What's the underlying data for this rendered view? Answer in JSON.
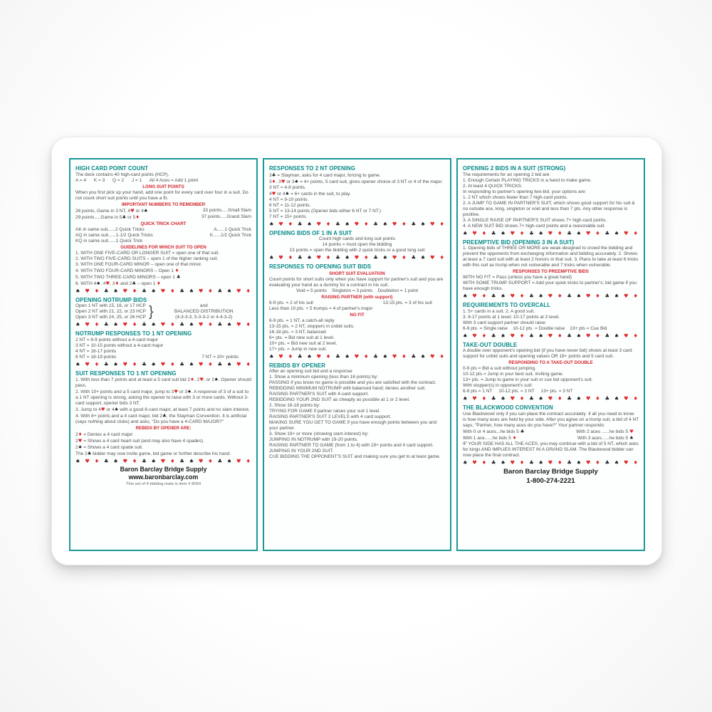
{
  "card_title": "Bridge Bidding Reference Card",
  "colors": {
    "panel_border_teal": "#1a9896",
    "heading_teal": "#058a88",
    "subheading_red": "#d2232a",
    "body_text": "#4f4f4f",
    "suit_red": "#e02b2b",
    "suit_black": "#262626",
    "card_background": "#ffffff"
  },
  "suit_row": "{S} {H} {D} {C} {S} {H} {D} {C} {S} {H} {D} {C} {S} {H} {D} {C} {S} {H} {D} {C}",
  "columns": [
    {
      "name": "left-panel",
      "blocks": [
        {
          "t": "h",
          "text": "HIGH CARD POINT COUNT"
        },
        {
          "t": "p",
          "text": "The deck contains 40 high-card points (HCP)."
        },
        {
          "t": "p",
          "text": "A = 4      K = 3      Q = 2      J = 1      All 4 Aces = Add 1 point"
        },
        {
          "t": "sh",
          "text": "LONG SUIT POINTS"
        },
        {
          "t": "p",
          "text": "When you first pick up your hand, add one point for every card over four in a suit. Do not count short suit points until you have a fit."
        },
        {
          "t": "sh",
          "text": "IMPORTANT NUMBERS TO REMEMBER"
        },
        {
          "t": "cols2",
          "left": "26 points, Game in 3 NT, 4{H} or 4{S}",
          "right": "33 points.....Small Slam"
        },
        {
          "t": "cols2",
          "left": "29 points.....Game in 5{C} or 5{D}",
          "right": "37 points.....Grand Slam"
        },
        {
          "t": "sh",
          "text": "QUICK TRICK CHART"
        },
        {
          "t": "cols2",
          "left": "AK in same suit......2 Quick Tricks",
          "right": "A......1 Quick Trick"
        },
        {
          "t": "cols2",
          "left": "AQ in same suit......1-1/2 Quick Tricks",
          "right": "K......1/2 Quick Trick"
        },
        {
          "t": "p",
          "text": "KQ in same suit......1 Quick Trick"
        },
        {
          "t": "sh",
          "text": "GUIDELINES FOR WHICH SUIT TO OPEN"
        },
        {
          "t": "p",
          "text": "1. WITH ONE FIVE-CARD OR LONGER SUIT = open one of that suit."
        },
        {
          "t": "p",
          "text": "2. WITH TWO FIVE-CARD SUITS – open 1 of the higher ranking suit."
        },
        {
          "t": "p",
          "text": "3. WITH ONE FOUR-CARD MINOR – open one of that minor."
        },
        {
          "t": "p",
          "text": "4. WITH TWO FOUR-CARD MINORS – Open 1 {D}"
        },
        {
          "t": "p",
          "text": "5. WITH TWO THREE-CARD MINORS – open 1 {C}"
        },
        {
          "t": "p",
          "text": "6. WITH 4{S}, 4{H}, 3{D} and 2{C} – open 1 {D}"
        },
        {
          "t": "suits"
        },
        {
          "t": "h",
          "text": "OPENING NOTRUMP BIDS"
        },
        {
          "t": "split",
          "left": [
            "Open 1 NT with 15, 16, or 17 HCP",
            "Open 2 NT with 21, 22, or 23 HCP",
            "Open 3 NT with 24, 25, or 26 HCP"
          ],
          "brace": "}",
          "right": [
            "and",
            "BALANCED DISTRIBUTION",
            "(4-3-3-3, 5-3-3-2 or 4-4-3-2)"
          ]
        },
        {
          "t": "suits"
        },
        {
          "t": "h",
          "text": "NOTRUMP RESPONSES TO 1 NT OPENING"
        },
        {
          "t": "p",
          "text": "2 NT = 8-9 points without a 4-card major"
        },
        {
          "t": "p",
          "text": "3 NT = 10-15 points without a 4-card major"
        },
        {
          "t": "p",
          "text": "4 NT = 16-17 points"
        },
        {
          "t": "cols2",
          "left": "6 NT = 18-19 points",
          "right": "7 NT = 20+ points          "
        },
        {
          "t": "suits"
        },
        {
          "t": "h",
          "text": "SUIT RESPONSES TO 1 NT OPENING"
        },
        {
          "t": "p",
          "text": "1. With less than 7 points and at least a 5 card suit bid 2{D}, 2{H}, or 2{S}. Opener should pass."
        },
        {
          "t": "p",
          "text": "2. With 10+ points and a 5 card major, jump to 3{H} or 3{S}. A response of 3 of a suit to a 1 NT opening is strong, asking the opener to raise with 3 or more cards. Without 3-card support, opener bids 3 NT."
        },
        {
          "t": "p",
          "text": "3. Jump to 4{H} or 4{S} with a good 6-card major, at least 7 points and no slam interest."
        },
        {
          "t": "p",
          "text": "4. With 8+ points and a 4 card major, bid 2{C}, the Stayman Convention. It is artificial (says nothing about clubs) and asks, \"Do you have a 4-CARD MAJOR?\""
        },
        {
          "t": "sh",
          "text": "REBIDS BY OPENER ARE:"
        },
        {
          "t": "p",
          "text": "2{D} = Denies a 4 card major"
        },
        {
          "t": "p",
          "text": "2{H} = Shows a 4 card heart suit (and may also have 4 spades)."
        },
        {
          "t": "p",
          "text": "2{S} = Shows a 4 card spade suit."
        },
        {
          "t": "p",
          "text": "The 2{C} bidder may now invite game, bid game or further describe his hand."
        },
        {
          "t": "suits"
        },
        {
          "t": "b",
          "text": "Baron Barclay Bridge Supply"
        },
        {
          "t": "b",
          "text": "www.baronbarclay.com"
        },
        {
          "t": "ps",
          "text": "This set of 4 bidding mats is item # 8054"
        }
      ]
    },
    {
      "name": "middle-panel",
      "blocks": [
        {
          "t": "h",
          "text": "RESPONSES TO 2 NT OPENING"
        },
        {
          "t": "p",
          "text": "3{C} = Stayman, asks for 4 card major, forcing to game."
        },
        {
          "t": "p",
          "text": "3{D}, 3{H} or 3{S} = 4+ points, 5 card suit, gives opener choice of 3 NT or 4 of the major."
        },
        {
          "t": "p",
          "text": "3 NT = 4-8 points."
        },
        {
          "t": "p",
          "text": "4{H} or 4{S} = 6+ cards in the suit, to play."
        },
        {
          "t": "p",
          "text": "4 NT = 9-10 points."
        },
        {
          "t": "p",
          "text": "6 NT = 11-12 points."
        },
        {
          "t": "p",
          "text": "5 NT = 13-14 points (Opener bids either 6 NT or 7 NT.)"
        },
        {
          "t": "p",
          "text": "7 NT = 15+ points."
        },
        {
          "t": "suits"
        },
        {
          "t": "h",
          "text": "OPENING BIDS OF 1 IN A SUIT"
        },
        {
          "t": "pc",
          "text": "Count high cards and long suit points"
        },
        {
          "t": "pc",
          "text": "14 points = must open the bidding"
        },
        {
          "t": "pc",
          "text": "13 points = open the bidding with 2 quick tricks or a good long suit"
        },
        {
          "t": "suits"
        },
        {
          "t": "h",
          "text": "RESPONSES TO OPENING SUIT BIDS"
        },
        {
          "t": "sh",
          "text": "SHORT SUIT EVALUATION"
        },
        {
          "t": "p",
          "text": "Count points for short suits only when you have support for partner's suit and you are evaluating your hand as a dummy for a contract in his suit."
        },
        {
          "t": "pc",
          "text": "Void = 5 points    Singleton = 3 points    Doubleton = 1 point"
        },
        {
          "t": "sh",
          "text": "RAISING PARTNER (with support)"
        },
        {
          "t": "cols2",
          "left": "6-9 pts. = 2 of his suit",
          "right": "13-15 pts. = 3 of his suit          "
        },
        {
          "t": "p",
          "text": "Less than 10 pts. + 5 trumps = 4 of partner's major"
        },
        {
          "t": "sh",
          "text": "NO FIT"
        },
        {
          "t": "p",
          "text": "6-9 pts. = 1 NT, a catch-all reply"
        },
        {
          "t": "p",
          "text": "13-15 pts. = 2 NT, stoppers in unbid suits."
        },
        {
          "t": "p",
          "text": "16-18 pts. = 3 NT, balanced"
        },
        {
          "t": "p",
          "text": "6+ pts. = Bid new suit at 1 level."
        },
        {
          "t": "p",
          "text": "10+ pts. = Bid new suit at 2 level."
        },
        {
          "t": "p",
          "text": "17+ pts. = Jump in new suit."
        },
        {
          "t": "suits"
        },
        {
          "t": "h",
          "text": "REBIDS BY OPENER"
        },
        {
          "t": "p",
          "text": "After an opening suit bid and a response"
        },
        {
          "t": "p",
          "text": "1. Show a minimum opening (less than 16 points) by:"
        },
        {
          "t": "p",
          "text": "PASSING if you know no game is possible and you are satisfied with the contract."
        },
        {
          "t": "p",
          "text": "REBIDDING MINIMUM NOTRUMP with balanced hand; denies another suit."
        },
        {
          "t": "p",
          "text": "RAISING PARTNER'S SUIT with 4-card support."
        },
        {
          "t": "p",
          "text": "REBIDDING YOUR 2ND SUIT as cheaply as possible at 1 or 2 level."
        },
        {
          "t": "p",
          "text": "2. Show 16-18 points by:"
        },
        {
          "t": "p",
          "text": "TRYING FOR GAME if partner raises your suit 1 level."
        },
        {
          "t": "p",
          "text": "RAISING PARTNER'S SUIT 2 LEVELS with 4 card support."
        },
        {
          "t": "p",
          "text": "MAKING SURE YOU GET TO GAME if you have enough points between you and your partner."
        },
        {
          "t": "p",
          "text": "3. Show 19+ or more (showing slam interest) by:"
        },
        {
          "t": "p",
          "text": "JUMPING IN NOTRUMP with 19-20 points."
        },
        {
          "t": "p",
          "text": "RAISING PARTNER TO GAME (from 1 to 4) with 19+ points and 4 card support."
        },
        {
          "t": "p",
          "text": "JUMPING IN YOUR 2ND SUIT."
        },
        {
          "t": "p",
          "text": "CUE BIDDING THE OPPONENT'S SUIT and making sure you get to at least game."
        }
      ]
    },
    {
      "name": "right-panel",
      "blocks": [
        {
          "t": "h",
          "text": "OPENING 2 BIDS IN A SUIT (STRONG)"
        },
        {
          "t": "p",
          "text": "The requirements for an opening 2 bid are:"
        },
        {
          "t": "p",
          "text": "1. Enough Certain PLAYING TRICKS in a hand to make game."
        },
        {
          "t": "p",
          "text": "2. At least 4 QUICK TRICKS."
        },
        {
          "t": "p",
          "text": "In responding to partner's opening two-bid, your options are:"
        },
        {
          "t": "p",
          "text": "1. 2 NT which shows fewer than 7 high-card points."
        },
        {
          "t": "p",
          "text": "2. A JUMP TO GAME IN PARTNER'S SUIT, which shows good support for his suit & no outside ace, king, singleton or void and less than 7 pts. Any other response is positive."
        },
        {
          "t": "p",
          "text": "3. A SINGLE RAISE OF PARTNER'S SUIT shows 7+ high-card points."
        },
        {
          "t": "p",
          "text": "4. A NEW SUIT BID shows 7+ high-card points and a reasonable suit."
        },
        {
          "t": "suits"
        },
        {
          "t": "h",
          "text": "PREEMPTIVE BID (OPENING 3 IN A SUIT)"
        },
        {
          "t": "p",
          "text": "1. Opening bids of THREE OR MORE are weak designed to crowd the bidding and prevent the opponents from exchanging information and bidding accurately. 2. Shows at least a 7 card suit with at least 2 honors in that suit. 3. Plans to take at least 6 tricks with this suit as trump when not vulnerable and 7 tricks when vulnerable."
        },
        {
          "t": "sh",
          "text": "RESPONSES TO PREEMPTIVE BIDS"
        },
        {
          "t": "p",
          "text": "WITH NO FIT = Pass (unless you have a great hand)"
        },
        {
          "t": "p",
          "text": "WITH SOME TRUMP SUPPORT = Add your quick tricks to partner's; bid game if you have enough tricks."
        },
        {
          "t": "suits"
        },
        {
          "t": "h",
          "text": "REQUIREMENTS TO OVERCALL"
        },
        {
          "t": "p",
          "text": "1. 5+ cards in a suit. 2. A good suit."
        },
        {
          "t": "p",
          "text": "3. 8-17 points at 1 level; 10-17 points at 2 level."
        },
        {
          "t": "p",
          "text": "With 3 card support partner should raise:"
        },
        {
          "t": "p",
          "text": "6-9 pts. = Single raise    10-12 pts. = Double raise    13+ pts = Cue Bid"
        },
        {
          "t": "suits"
        },
        {
          "t": "h",
          "text": "TAKE-OUT DOUBLE"
        },
        {
          "t": "p",
          "text": "A double over opponent's opening bid (if you have never bid) shows at least 3 card support for unbid suits and opening values OR 18+ points and 5 card suit."
        },
        {
          "t": "sh",
          "text": "RESPONDING TO A TAKE-OUT DOUBLE"
        },
        {
          "t": "p",
          "text": "0-9 pts = Bid a suit without jumping."
        },
        {
          "t": "p",
          "text": "10-12 pts = Jump in your best suit, inviting game."
        },
        {
          "t": "p",
          "text": "13+ pts. = Jump to game in your suit or cue bid opponent's suit."
        },
        {
          "t": "p",
          "text": "With stopper(s) in opponent's suit:"
        },
        {
          "t": "p",
          "text": "6-9 pts = 1 NT     10-12 pts. = 2 NT     13+ pts. = 3 NT"
        },
        {
          "t": "suits"
        },
        {
          "t": "h",
          "text": "THE BLACKWOOD CONVENTION"
        },
        {
          "t": "p",
          "text": "Use Blackwood only if you can place the contract accurately  if all you need to know is how many aces are held by your side. After you agree on a trump suit, a bid of 4 NT says, \"Partner, how many aces do you have?\" Your partner responds:"
        },
        {
          "t": "cols2",
          "left": "With 0 or 4 aces...he bids 5 {C}",
          "right": "With 2 aces ......he bids 5 {H}    "
        },
        {
          "t": "cols2",
          "left": "With 1 ace......he bids 5 {D}",
          "right": "With 3 aces......he bids 5 {S}    "
        },
        {
          "t": "p",
          "text": "IF YOUR SIDE HAS ALL THE ACES, you may continue with a bid of 5 NT, which asks for kings AND IMPLIES INTEREST IN A GRAND SLAM. The Blackwood bidder can now place the final contract."
        },
        {
          "t": "suits"
        },
        {
          "t": "bbig",
          "text": "Baron Barclay Bridge Supply"
        },
        {
          "t": "bbig",
          "text": "1-800-274-2221"
        }
      ]
    }
  ]
}
